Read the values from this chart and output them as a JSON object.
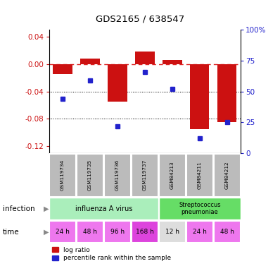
{
  "title": "GDS2165 / 638547",
  "samples": [
    "GSM119734",
    "GSM119735",
    "GSM119736",
    "GSM119737",
    "GSM84213",
    "GSM84211",
    "GSM84212"
  ],
  "log_ratios": [
    -0.015,
    0.008,
    -0.055,
    0.018,
    0.006,
    -0.095,
    -0.085
  ],
  "percentile_ranks": [
    44,
    59,
    22,
    66,
    52,
    12,
    25
  ],
  "ylim_left": [
    -0.13,
    0.05
  ],
  "ylim_right": [
    0,
    100
  ],
  "bar_color": "#cc1111",
  "dot_color": "#2222cc",
  "dashed_line_color": "#dd2222",
  "time_labels": [
    "24 h",
    "48 h",
    "96 h",
    "168 h",
    "12 h",
    "24 h",
    "48 h"
  ],
  "time_bg": [
    "#ee77ee",
    "#ee77ee",
    "#ee77ee",
    "#dd44dd",
    "#dddddd",
    "#ee77ee",
    "#ee77ee"
  ],
  "gsm_bg_color": "#bbbbbb",
  "influenza_color": "#aaeebb",
  "strep_color": "#66dd66",
  "legend_red_label": "log ratio",
  "legend_blue_label": "percentile rank within the sample"
}
